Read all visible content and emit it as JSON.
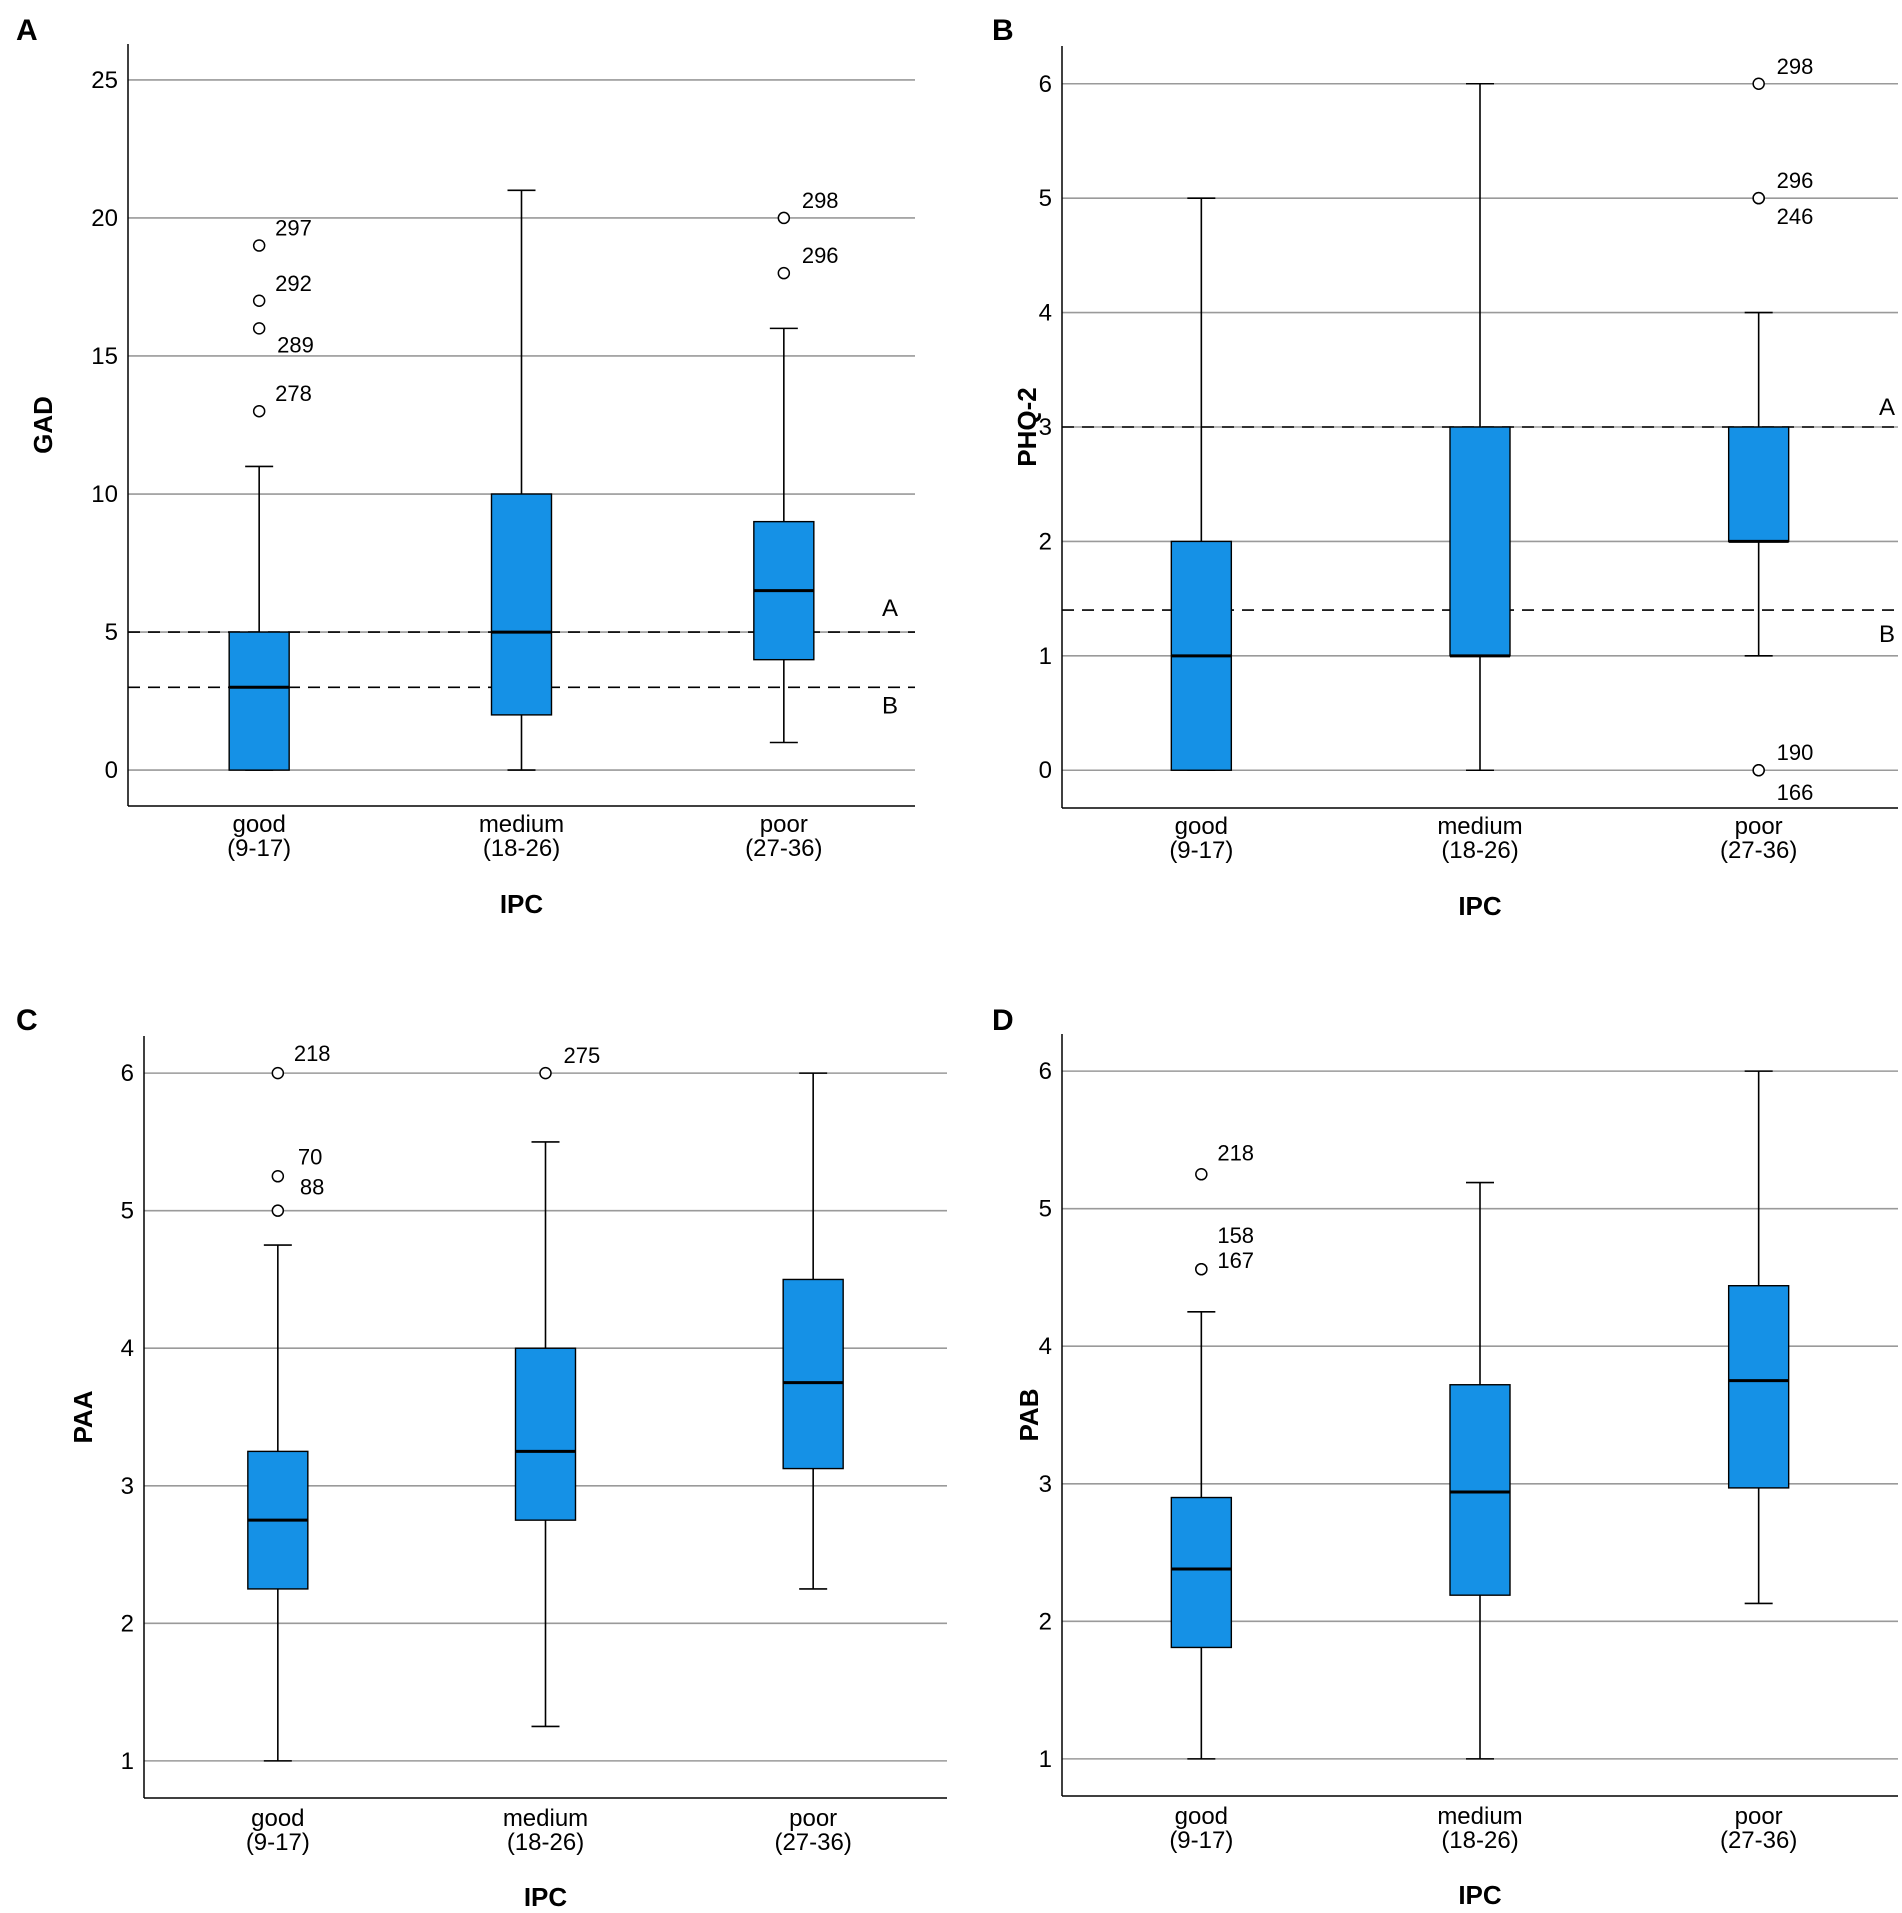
{
  "figure": {
    "colors": {
      "box_fill": "#1591e6",
      "box_stroke": "#000000",
      "gridline": "#9a9a9a"
    }
  },
  "chart_data": [
    {
      "panel": "A",
      "type": "boxplot",
      "xlabel": "IPC",
      "ylabel": "GAD",
      "ylim": [
        -1.3,
        26.3
      ],
      "yticks": [
        0,
        5,
        10,
        15,
        20,
        25
      ],
      "categories": [
        {
          "name": "good",
          "range": "(9-17)",
          "whisker_low": 0,
          "q1": 0,
          "median": 3,
          "q3": 5,
          "whisker_high": 11,
          "outliers": [
            {
              "value": 19,
              "label": "297"
            },
            {
              "value": 17,
              "label": "292"
            },
            {
              "value": 16,
              "label": "289"
            },
            {
              "value": 13,
              "label": "278"
            }
          ]
        },
        {
          "name": "medium",
          "range": "(18-26)",
          "whisker_low": 0,
          "q1": 2,
          "median": 5,
          "q3": 10,
          "whisker_high": 21,
          "outliers": []
        },
        {
          "name": "poor",
          "range": "(27-36)",
          "whisker_low": 1,
          "q1": 4,
          "median": 6.5,
          "q3": 9,
          "whisker_high": 16,
          "outliers": [
            {
              "value": 20,
              "label": "298"
            },
            {
              "value": 18,
              "label": "296"
            }
          ]
        }
      ],
      "ref_lines": [
        {
          "value": 5,
          "label": "A"
        },
        {
          "value": 3,
          "label": "B"
        }
      ]
    },
    {
      "panel": "B",
      "type": "boxplot",
      "xlabel": "IPC",
      "ylabel": "PHQ-2",
      "ylim": [
        -0.33,
        6.33
      ],
      "yticks": [
        0,
        1,
        2,
        3,
        4,
        5,
        6
      ],
      "categories": [
        {
          "name": "good",
          "range": "(9-17)",
          "whisker_low": 0,
          "q1": 0,
          "median": 1,
          "q3": 2,
          "whisker_high": 5,
          "outliers": []
        },
        {
          "name": "medium",
          "range": "(18-26)",
          "whisker_low": 0,
          "q1": 1,
          "median": 1,
          "q3": 3,
          "whisker_high": 6,
          "outliers": []
        },
        {
          "name": "poor",
          "range": "(27-36)",
          "whisker_low": 1,
          "q1": 2,
          "median": 2,
          "q3": 3,
          "whisker_high": 4,
          "outliers": [
            {
              "value": 6,
              "label": "298"
            },
            {
              "value": 5,
              "label": "296"
            },
            {
              "value": 5,
              "label": "246"
            },
            {
              "value": 0,
              "label": "190"
            },
            {
              "value": 0,
              "label": "166"
            }
          ]
        }
      ],
      "ref_lines": [
        {
          "value": 3,
          "label": "A"
        },
        {
          "value": 1.4,
          "label": "B"
        }
      ]
    },
    {
      "panel": "C",
      "type": "boxplot",
      "xlabel": "IPC",
      "ylabel": "PAA",
      "ylim": [
        0.73,
        6.27
      ],
      "yticks": [
        1,
        2,
        3,
        4,
        5,
        6
      ],
      "categories": [
        {
          "name": "good",
          "range": "(9-17)",
          "whisker_low": 1,
          "q1": 2.25,
          "median": 2.75,
          "q3": 3.25,
          "whisker_high": 4.75,
          "outliers": [
            {
              "value": 6,
              "label": "218"
            },
            {
              "value": 5.25,
              "label": "70"
            },
            {
              "value": 5,
              "label": "88"
            }
          ]
        },
        {
          "name": "medium",
          "range": "(18-26)",
          "whisker_low": 1.25,
          "q1": 2.75,
          "median": 3.25,
          "q3": 4,
          "whisker_high": 5.5,
          "outliers": [
            {
              "value": 6,
              "label": "275"
            }
          ]
        },
        {
          "name": "poor",
          "range": "(27-36)",
          "whisker_low": 2.25,
          "q1": 3.125,
          "median": 3.75,
          "q3": 4.5,
          "whisker_high": 6,
          "outliers": []
        }
      ],
      "ref_lines": []
    },
    {
      "panel": "D",
      "type": "boxplot",
      "xlabel": "IPC",
      "ylabel": "PAB",
      "ylim": [
        0.73,
        6.27
      ],
      "yticks": [
        1,
        2,
        3,
        4,
        5,
        6
      ],
      "categories": [
        {
          "name": "good",
          "range": "(9-17)",
          "whisker_low": 1,
          "q1": 1.81,
          "median": 2.38,
          "q3": 2.9,
          "whisker_high": 4.25,
          "outliers": [
            {
              "value": 5.25,
              "label": "218"
            },
            {
              "value": 4.56,
              "label": "158"
            },
            {
              "value": 4.56,
              "label": "167"
            }
          ]
        },
        {
          "name": "medium",
          "range": "(18-26)",
          "whisker_low": 1,
          "q1": 2.19,
          "median": 2.94,
          "q3": 3.72,
          "whisker_high": 5.19,
          "outliers": []
        },
        {
          "name": "poor",
          "range": "(27-36)",
          "whisker_low": 2.13,
          "q1": 2.97,
          "median": 3.75,
          "q3": 4.44,
          "whisker_high": 6,
          "outliers": []
        }
      ],
      "ref_lines": []
    }
  ]
}
